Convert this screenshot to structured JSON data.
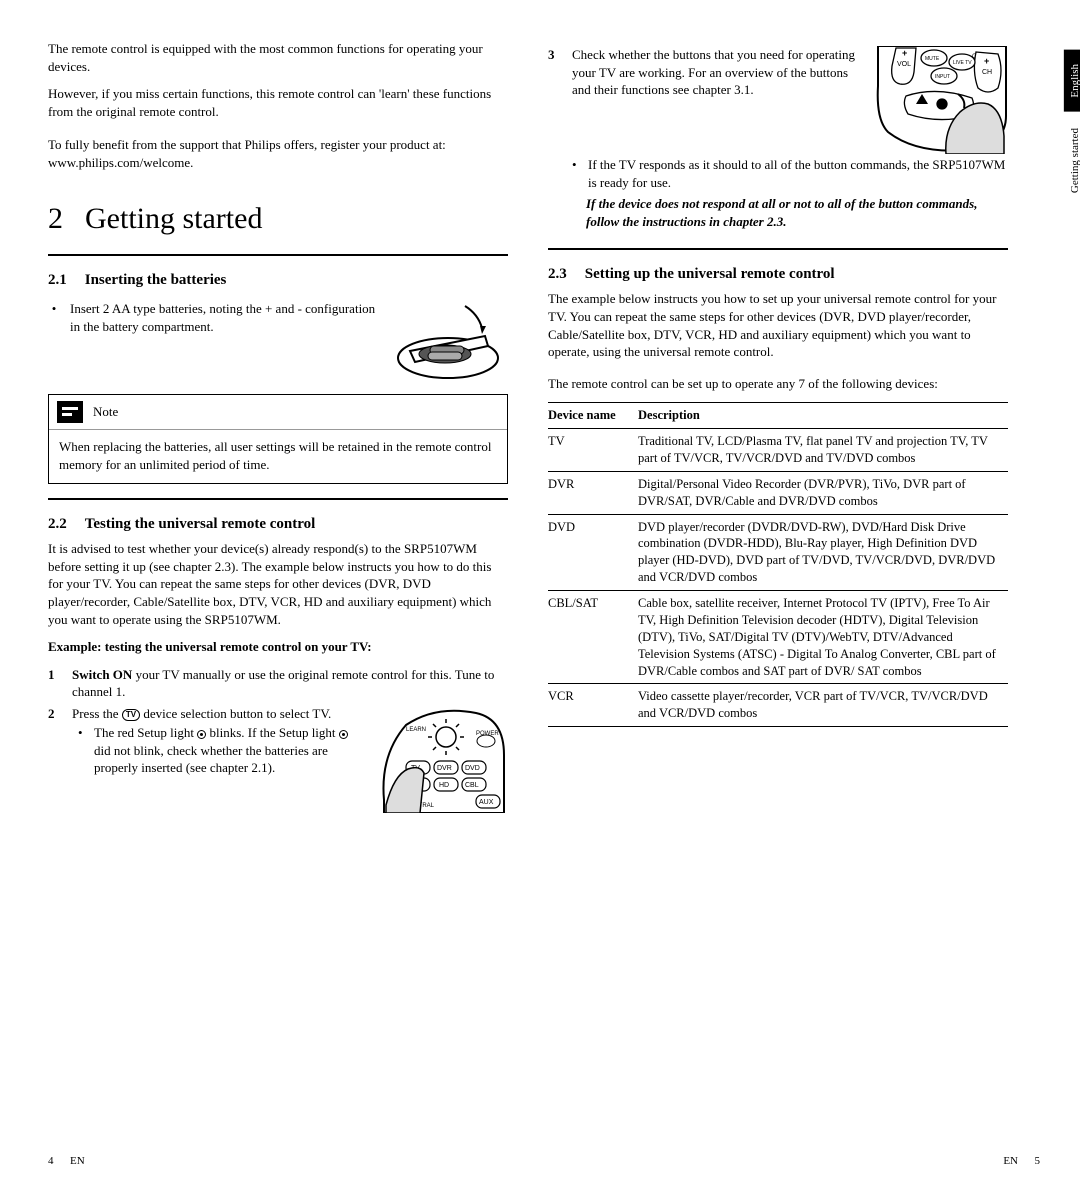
{
  "sideTabs": {
    "english": "English",
    "getting": "Getting started"
  },
  "intro": {
    "p1": "The remote control is equipped with the most common functions for operating your devices.",
    "p2": "However, if you miss certain functions, this remote control can 'learn' these functions from the original remote control.",
    "p3": "To fully benefit from the support that Philips offers, register your product at:",
    "p4": "www.philips.com/welcome."
  },
  "chapter": {
    "num": "2",
    "title": "Getting started"
  },
  "s21": {
    "num": "2.1",
    "title": "Inserting the batteries",
    "bullet": "Insert 2 AA type batteries, noting the + and - configuration in the battery compartment."
  },
  "note": {
    "label": "Note",
    "body": "When replacing the batteries, all user settings will be retained in the remote control memory for an unlimited period of time."
  },
  "s22": {
    "num": "2.2",
    "title": "Testing the universal remote control",
    "intro": "It is advised to test whether your device(s) already respond(s) to the SRP5107WM before setting it up (see chapter 2.3). The example below instructs you how to do this for your TV. You can repeat the same steps for other devices (DVR, DVD player/recorder, Cable/Satellite box, DTV, VCR, HD and auxiliary equipment) which you want to operate using the SRP5107WM.",
    "exampleLabel": "Example: testing the universal remote control on your TV:",
    "step1a": "Switch ON",
    "step1b": " your TV manually or use the original remote control for this. Tune to channel 1.",
    "step2a": "Press the ",
    "step2b": " device selection button to select TV.",
    "step2sub1a": "The red Setup light ",
    "step2sub1b": " blinks. If the Setup light ",
    "step2sub1c": " did not blink, check whether the batteries are properly inserted (see chapter 2.1)."
  },
  "s22r": {
    "step3": "Check whether the buttons that you need for operating your TV are working. For an overview of the buttons and their functions see chapter 3.1.",
    "step3sub": "If the TV responds as it should to all of the button commands, the SRP5107WM is ready for use.",
    "step3italic": "If the device does not respond at all or not to all of the button commands, follow the instructions in chapter 2.3."
  },
  "s23": {
    "num": "2.3",
    "title": "Setting up the universal remote control",
    "p1": "The example below instructs you how to set up your universal remote control for your TV. You can repeat the same steps for other devices (DVR, DVD player/recorder, Cable/Satellite box, DTV, VCR, HD and auxiliary equipment) which you want to operate, using the universal remote control.",
    "p2": "The remote control can be set up to operate any 7 of the following devices:"
  },
  "table": {
    "h1": "Device name",
    "h2": "Description",
    "rows": [
      {
        "n": "TV",
        "d": "Traditional TV, LCD/Plasma TV, flat panel TV and projection TV,  TV part of TV/VCR, TV/VCR/DVD and TV/DVD combos"
      },
      {
        "n": "DVR",
        "d": "Digital/Personal Video Recorder (DVR/PVR), TiVo, DVR part of DVR/SAT, DVR/Cable and DVR/DVD combos"
      },
      {
        "n": "DVD",
        "d": "DVD player/recorder (DVDR/DVD-RW), DVD/Hard Disk Drive combination (DVDR-HDD), Blu-Ray player, High Definition DVD player (HD-DVD), DVD part of TV/DVD, TV/VCR/DVD, DVR/DVD and VCR/DVD combos"
      },
      {
        "n": "CBL/SAT",
        "d": "Cable box, satellite receiver, Internet Protocol TV (IPTV), Free To Air TV, High Definition Television decoder (HDTV), Digital Television (DTV), TiVo, SAT/Digital TV (DTV)/WebTV, DTV/Advanced Television Systems (ATSC) - Digital To Analog Converter, CBL part of DVR/Cable combos and SAT part of DVR/ SAT combos"
      },
      {
        "n": "VCR",
        "d": "Video cassette player/recorder, VCR part of TV/VCR, TV/VCR/DVD and VCR/DVD combos"
      }
    ]
  },
  "footer": {
    "leftNum": "4",
    "leftLang": "EN",
    "rightLang": "EN",
    "rightNum": "5"
  },
  "tvGlyph": "TV"
}
